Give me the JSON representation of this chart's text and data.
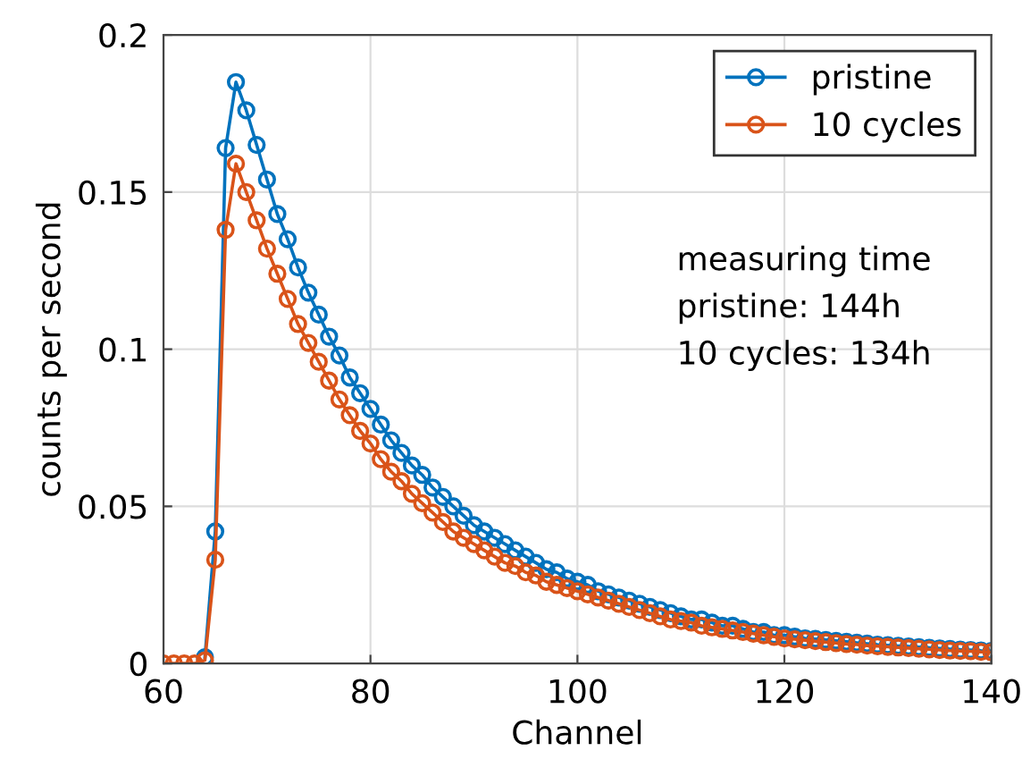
{
  "chart_data": {
    "type": "line",
    "xlabel": "Channel",
    "ylabel": "counts per second",
    "x": [
      60,
      61,
      62,
      63,
      64,
      65,
      66,
      67,
      68,
      69,
      70,
      71,
      72,
      73,
      74,
      75,
      76,
      77,
      78,
      79,
      80,
      81,
      82,
      83,
      84,
      85,
      86,
      87,
      88,
      89,
      90,
      91,
      92,
      93,
      94,
      95,
      96,
      97,
      98,
      99,
      100,
      101,
      102,
      103,
      104,
      105,
      106,
      107,
      108,
      109,
      110,
      111,
      112,
      113,
      114,
      115,
      116,
      117,
      118,
      119,
      120,
      121,
      122,
      123,
      124,
      125,
      126,
      127,
      128,
      129,
      130,
      131,
      132,
      133,
      134,
      135,
      136,
      137,
      138,
      139,
      140
    ],
    "series": [
      {
        "name": "pristine",
        "color": "#0072bd",
        "values": [
          null,
          null,
          null,
          null,
          0.002,
          0.042,
          0.164,
          0.185,
          0.176,
          0.165,
          0.154,
          0.143,
          0.135,
          0.126,
          0.118,
          0.111,
          0.104,
          0.098,
          0.091,
          0.086,
          0.081,
          0.076,
          0.071,
          0.067,
          0.063,
          0.06,
          0.056,
          0.053,
          0.05,
          0.047,
          0.044,
          0.042,
          0.04,
          0.038,
          0.036,
          0.034,
          0.032,
          0.03,
          0.029,
          0.027,
          0.026,
          0.025,
          0.023,
          0.022,
          0.021,
          0.02,
          0.019,
          0.018,
          0.017,
          0.016,
          0.015,
          0.014,
          0.014,
          0.013,
          0.012,
          0.012,
          0.011,
          0.01,
          0.01,
          0.009,
          0.009,
          0.0085,
          0.008,
          0.0078,
          0.0075,
          0.0072,
          0.0069,
          0.0066,
          0.0063,
          0.006,
          0.0058,
          0.0056,
          0.0054,
          0.0052,
          0.005,
          0.0048,
          0.0046,
          0.0044,
          0.0043,
          0.0041,
          0.004
        ]
      },
      {
        "name": "10 cycles",
        "color": "#d95319",
        "values": [
          0,
          0,
          0,
          0,
          0.001,
          0.033,
          0.138,
          0.159,
          0.15,
          0.141,
          0.132,
          0.124,
          0.116,
          0.108,
          0.102,
          0.096,
          0.09,
          0.084,
          0.079,
          0.074,
          0.07,
          0.065,
          0.061,
          0.058,
          0.054,
          0.051,
          0.048,
          0.045,
          0.042,
          0.04,
          0.038,
          0.036,
          0.034,
          0.032,
          0.031,
          0.029,
          0.028,
          0.026,
          0.025,
          0.024,
          0.023,
          0.022,
          0.021,
          0.02,
          0.019,
          0.018,
          0.017,
          0.016,
          0.015,
          0.014,
          0.0135,
          0.013,
          0.012,
          0.0115,
          0.011,
          0.0105,
          0.01,
          0.0095,
          0.009,
          0.0085,
          0.008,
          0.0077,
          0.0074,
          0.0071,
          0.0068,
          0.0065,
          0.0062,
          0.006,
          0.0057,
          0.0055,
          0.0053,
          0.0051,
          0.0049,
          0.0047,
          0.0045,
          0.0043,
          0.0041,
          0.004,
          0.0039,
          0.0037,
          0.0036
        ]
      }
    ],
    "xlim": [
      60,
      140
    ],
    "xticks": [
      60,
      80,
      100,
      120,
      140
    ],
    "ylim": [
      0,
      0.2
    ],
    "yticks": [
      0,
      0.05,
      0.1,
      0.15,
      0.2
    ],
    "grid": true,
    "legend": "top right",
    "marker": "circle",
    "line_style": "solid",
    "annotations": [
      "measuring time",
      "pristine: 144h",
      "10 cycles: 134h"
    ]
  }
}
